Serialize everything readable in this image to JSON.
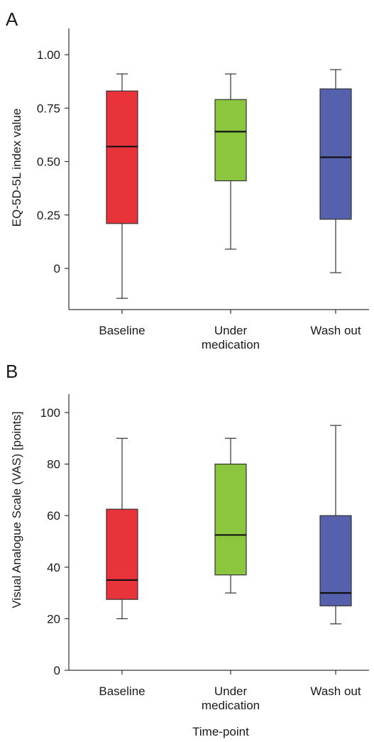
{
  "chart_data": [
    {
      "panel_label": "A",
      "type": "boxplot",
      "ylabel": "EQ-5D-5L index value",
      "ylim": [
        -0.2,
        1.1
      ],
      "yticks": [
        "1.00",
        "0.75",
        "0.50",
        "0.25",
        "0"
      ],
      "ytick_values": [
        1.0,
        0.75,
        0.5,
        0.25,
        0
      ],
      "categories": [
        "Baseline",
        "Under medication",
        "Wash out"
      ],
      "category_lines": [
        [
          "Baseline"
        ],
        [
          "Under",
          "medication"
        ],
        [
          "Wash out"
        ]
      ],
      "colors": [
        "#e8333b",
        "#8cc63e",
        "#5661ad"
      ],
      "boxes": [
        {
          "min": -0.14,
          "q1": 0.21,
          "median": 0.57,
          "q3": 0.83,
          "max": 0.91
        },
        {
          "min": 0.09,
          "q1": 0.41,
          "median": 0.64,
          "q3": 0.79,
          "max": 0.91
        },
        {
          "min": -0.02,
          "q1": 0.23,
          "median": 0.52,
          "q3": 0.84,
          "max": 0.93
        }
      ]
    },
    {
      "panel_label": "B",
      "type": "boxplot",
      "ylabel": "Visual Analogue Scale (VAS) [points]",
      "xlabel": "Time-point",
      "ylim": [
        0,
        110
      ],
      "yticks": [
        "100",
        "80",
        "60",
        "40",
        "20",
        "0"
      ],
      "ytick_values": [
        100,
        80,
        60,
        40,
        20,
        0
      ],
      "categories": [
        "Baseline",
        "Under medication",
        "Wash out"
      ],
      "category_lines": [
        [
          "Baseline"
        ],
        [
          "Under",
          "medication"
        ],
        [
          "Wash out"
        ]
      ],
      "colors": [
        "#e8333b",
        "#8cc63e",
        "#5661ad"
      ],
      "boxes": [
        {
          "min": 20,
          "q1": 27.5,
          "median": 35,
          "q3": 62.5,
          "max": 90
        },
        {
          "min": 30,
          "q1": 37,
          "median": 52.5,
          "q3": 80,
          "max": 90
        },
        {
          "min": 18,
          "q1": 25,
          "median": 30,
          "q3": 60,
          "max": 95
        }
      ]
    }
  ]
}
